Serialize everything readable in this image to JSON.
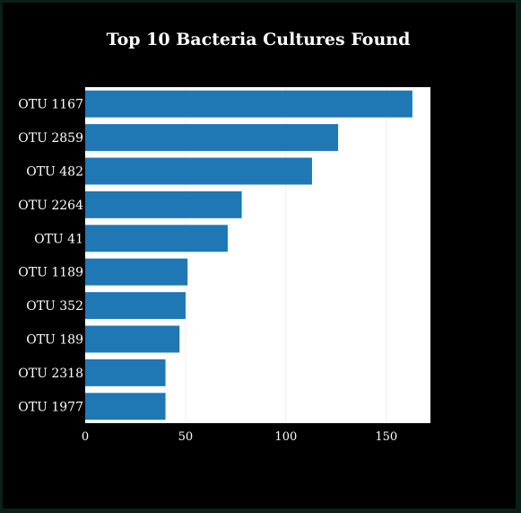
{
  "chart_data": {
    "type": "bar",
    "orientation": "horizontal",
    "title": "Top 10 Bacteria Cultures Found",
    "xlabel": "",
    "ylabel": "",
    "categories": [
      "OTU 1167",
      "OTU 2859",
      "OTU 482",
      "OTU 2264",
      "OTU 41",
      "OTU 1189",
      "OTU 352",
      "OTU 189",
      "OTU 2318",
      "OTU 1977"
    ],
    "values": [
      163,
      126,
      113,
      78,
      71,
      51,
      50,
      47,
      40,
      40
    ],
    "xlim": [
      0,
      172
    ],
    "xticks": [
      0,
      50,
      100,
      150
    ],
    "grid": true,
    "legend": "none",
    "colors": {
      "bar": "#1f77b4",
      "plot_background": "#ffffff",
      "page_background": "#000000",
      "text": "#ffffff",
      "grid": "#eeeeee"
    }
  }
}
